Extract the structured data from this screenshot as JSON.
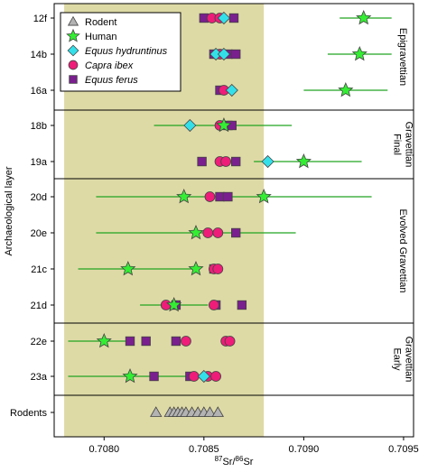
{
  "chart_data": {
    "type": "scatter",
    "xlabel": "87Sr/86Sr",
    "ylabel": "Archaeological layer",
    "xlim": [
      0.70775,
      0.70955
    ],
    "x_ticks": [
      "0.7080",
      "0.7085",
      "0.7090",
      "0.7095"
    ],
    "x_tick_values": [
      0.708,
      0.7085,
      0.709,
      0.7095
    ],
    "layers": [
      "12f",
      "14b",
      "16a",
      "18b",
      "19a",
      "20d",
      "20e",
      "21c",
      "21d",
      "22e",
      "23a",
      "Rodents"
    ],
    "local_range": [
      0.7078,
      0.7088
    ],
    "periods": [
      {
        "name": "Epigravettian",
        "layers": [
          "12f",
          "14b",
          "16a"
        ],
        "lines": [
          "Epigravettian"
        ]
      },
      {
        "name": "Final Gravettian",
        "layers": [
          "18b",
          "19a"
        ],
        "lines": [
          "Final",
          "Gravettian"
        ]
      },
      {
        "name": "Evolved Gravettian",
        "layers": [
          "20d",
          "20e",
          "21c",
          "21d"
        ],
        "lines": [
          "Evolved Gravettian"
        ]
      },
      {
        "name": "Early Gravettian",
        "layers": [
          "22e",
          "23a"
        ],
        "lines": [
          "Early",
          "Gravettian"
        ]
      }
    ],
    "legend": [
      {
        "label": "Rodent",
        "italic": false,
        "marker": "triangle",
        "color": "#b3b3b3"
      },
      {
        "label": "Human",
        "italic": false,
        "marker": "star",
        "color": "#33ee33"
      },
      {
        "label": "Equus hydruntinus",
        "italic": true,
        "marker": "diamond",
        "color": "#33e0ea"
      },
      {
        "label": "Capra ibex",
        "italic": true,
        "marker": "circle",
        "color": "#ee1d79"
      },
      {
        "label": "Equus ferus",
        "italic": true,
        "marker": "square",
        "color": "#7a1f8e"
      }
    ],
    "series": [
      {
        "name": "Rodent",
        "marker": "triangle",
        "color": "#b3b3b3",
        "points": [
          {
            "layer": "Rodents",
            "x": 0.70826
          },
          {
            "layer": "Rodents",
            "x": 0.70833
          },
          {
            "layer": "Rodents",
            "x": 0.70835
          },
          {
            "layer": "Rodents",
            "x": 0.70837
          },
          {
            "layer": "Rodents",
            "x": 0.70839
          },
          {
            "layer": "Rodents",
            "x": 0.70841
          },
          {
            "layer": "Rodents",
            "x": 0.70844
          },
          {
            "layer": "Rodents",
            "x": 0.70847
          },
          {
            "layer": "Rodents",
            "x": 0.7085
          },
          {
            "layer": "Rodents",
            "x": 0.70853
          },
          {
            "layer": "Rodents",
            "x": 0.70857
          }
        ]
      },
      {
        "name": "Human",
        "marker": "star",
        "color": "#33ee33",
        "points": [
          {
            "layer": "12f",
            "x": 0.7093,
            "err": [
              0.70918,
              0.70944
            ]
          },
          {
            "layer": "14b",
            "x": 0.70928,
            "err": [
              0.70912,
              0.70944
            ]
          },
          {
            "layer": "16a",
            "x": 0.70921,
            "err": [
              0.709,
              0.70942
            ]
          },
          {
            "layer": "18b",
            "x": 0.7086,
            "err": [
              0.70825,
              0.70894
            ]
          },
          {
            "layer": "19a",
            "x": 0.709,
            "err": [
              0.70875,
              0.70929
            ]
          },
          {
            "layer": "20d",
            "x": 0.7084,
            "err": [
              0.70796,
              0.70934
            ]
          },
          {
            "layer": "20d",
            "x": 0.7088,
            "err": [
              0.70796,
              0.70934
            ]
          },
          {
            "layer": "20e",
            "x": 0.70846,
            "err": [
              0.70796,
              0.70896
            ]
          },
          {
            "layer": "21c",
            "x": 0.70812,
            "err": [
              0.70787,
              0.70846
            ]
          },
          {
            "layer": "21c",
            "x": 0.70846,
            "err": [
              0.70787,
              0.70846
            ]
          },
          {
            "layer": "21d",
            "x": 0.70835,
            "err": [
              0.70818,
              0.70852
            ]
          },
          {
            "layer": "22e",
            "x": 0.708,
            "err": [
              0.70782,
              0.70814
            ]
          },
          {
            "layer": "23a",
            "x": 0.70813,
            "err": [
              0.70782,
              0.7085
            ]
          }
        ]
      },
      {
        "name": "Equus hydruntinus",
        "marker": "diamond",
        "color": "#33e0ea",
        "points": [
          {
            "layer": "12f",
            "x": 0.7086
          },
          {
            "layer": "14b",
            "x": 0.70856
          },
          {
            "layer": "14b",
            "x": 0.7086
          },
          {
            "layer": "16a",
            "x": 0.70864
          },
          {
            "layer": "18b",
            "x": 0.70843
          },
          {
            "layer": "19a",
            "x": 0.70882
          },
          {
            "layer": "23a",
            "x": 0.7085
          }
        ]
      },
      {
        "name": "Capra ibex",
        "marker": "circle",
        "color": "#ee1d79",
        "points": [
          {
            "layer": "12f",
            "x": 0.70854
          },
          {
            "layer": "12f",
            "x": 0.70858
          },
          {
            "layer": "14b",
            "x": 0.70858
          },
          {
            "layer": "16a",
            "x": 0.7086
          },
          {
            "layer": "18b",
            "x": 0.70858
          },
          {
            "layer": "19a",
            "x": 0.70858
          },
          {
            "layer": "19a",
            "x": 0.70861
          },
          {
            "layer": "20d",
            "x": 0.70853
          },
          {
            "layer": "20e",
            "x": 0.70852
          },
          {
            "layer": "20e",
            "x": 0.70857
          },
          {
            "layer": "21c",
            "x": 0.70855
          },
          {
            "layer": "21c",
            "x": 0.70857
          },
          {
            "layer": "21d",
            "x": 0.70831
          },
          {
            "layer": "21d",
            "x": 0.70855
          },
          {
            "layer": "22e",
            "x": 0.70841
          },
          {
            "layer": "22e",
            "x": 0.70861
          },
          {
            "layer": "22e",
            "x": 0.70863
          },
          {
            "layer": "23a",
            "x": 0.70845
          },
          {
            "layer": "23a",
            "x": 0.70852
          },
          {
            "layer": "23a",
            "x": 0.70856
          }
        ]
      },
      {
        "name": "Equus ferus",
        "marker": "square",
        "color": "#7a1f8e",
        "points": [
          {
            "layer": "12f",
            "x": 0.7085
          },
          {
            "layer": "12f",
            "x": 0.70865
          },
          {
            "layer": "14b",
            "x": 0.70855
          },
          {
            "layer": "14b",
            "x": 0.70862
          },
          {
            "layer": "14b",
            "x": 0.70866
          },
          {
            "layer": "16a",
            "x": 0.70858
          },
          {
            "layer": "18b",
            "x": 0.70862
          },
          {
            "layer": "18b",
            "x": 0.70864
          },
          {
            "layer": "19a",
            "x": 0.70849
          },
          {
            "layer": "19a",
            "x": 0.70866
          },
          {
            "layer": "20d",
            "x": 0.70858
          },
          {
            "layer": "20d",
            "x": 0.70862
          },
          {
            "layer": "20e",
            "x": 0.70866
          },
          {
            "layer": "21c",
            "x": 0.70855
          },
          {
            "layer": "21d",
            "x": 0.70836
          },
          {
            "layer": "21d",
            "x": 0.70856
          },
          {
            "layer": "21d",
            "x": 0.70869
          },
          {
            "layer": "22e",
            "x": 0.70813
          },
          {
            "layer": "22e",
            "x": 0.70821
          },
          {
            "layer": "22e",
            "x": 0.70836
          },
          {
            "layer": "23a",
            "x": 0.70825
          },
          {
            "layer": "23a",
            "x": 0.70843
          }
        ]
      }
    ]
  }
}
